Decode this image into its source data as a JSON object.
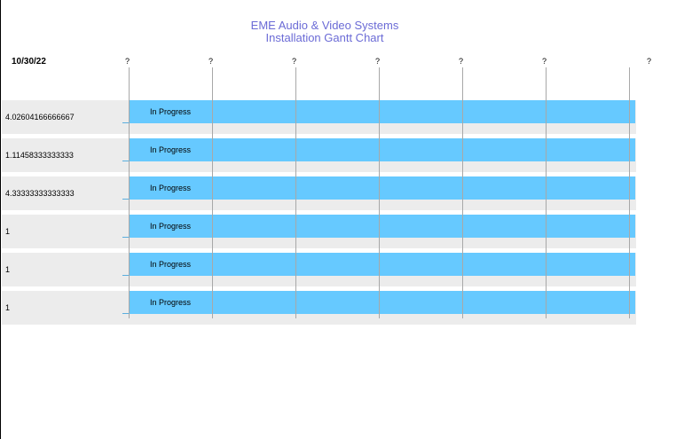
{
  "chart_data": {
    "type": "gantt",
    "title": "EME Audio & Video Systems",
    "subtitle": "Installation Gantt Chart",
    "date_label": "10/30/22",
    "tick_labels": [
      "?",
      "?",
      "?",
      "?",
      "?",
      "?",
      "?"
    ],
    "rows": [
      {
        "label": "4.02604166666667",
        "status": "In Progress",
        "start": 0,
        "end": 1
      },
      {
        "label": "1.11458333333333",
        "status": "In Progress",
        "start": 0,
        "end": 1
      },
      {
        "label": "4.33333333333333",
        "status": "In Progress",
        "start": 0,
        "end": 1
      },
      {
        "label": "1",
        "status": "In Progress",
        "start": 0,
        "end": 1
      },
      {
        "label": "1",
        "status": "In Progress",
        "start": 0,
        "end": 1
      },
      {
        "label": "1",
        "status": "In Progress",
        "start": 0,
        "end": 1
      }
    ],
    "colors": {
      "bar": "#66c9ff",
      "row_background": "#ececec",
      "title": "#6b6bd6",
      "gridline": "#a8a8a8"
    }
  }
}
